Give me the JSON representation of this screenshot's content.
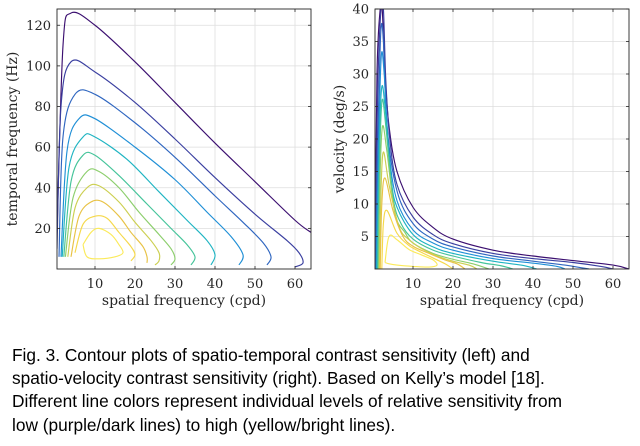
{
  "chart_data": [
    {
      "type": "contour",
      "xlabel": "spatial frequency (cpd)",
      "ylabel": "temporal frequency (Hz)",
      "xlim": [
        0.5,
        64
      ],
      "ylim": [
        0,
        128
      ],
      "xticks": [
        10,
        20,
        30,
        40,
        50,
        60
      ],
      "yticks": [
        20,
        40,
        60,
        80,
        100,
        120
      ],
      "grid": true,
      "colormap": [
        "#3b0f70",
        "#3a3fa0",
        "#2f66c0",
        "#1f8fd6",
        "#1fb4c2",
        "#45c49a",
        "#8cce6c",
        "#cccf50",
        "#e8c245",
        "#f5d84a",
        "#fbea5a"
      ],
      "contours": [
        {
          "level": 1,
          "x": [
            0.5,
            2,
            4,
            10,
            20,
            30,
            40,
            50,
            60,
            64
          ],
          "y": [
            18,
            110,
            126,
            120,
            102,
            82,
            62,
            43,
            24,
            18
          ]
        },
        {
          "level": 2,
          "x": [
            0.5,
            1.5,
            4,
            10,
            20,
            30,
            40,
            50,
            58,
            61,
            62,
            60
          ],
          "y": [
            10,
            80,
            102,
            97,
            82,
            64,
            45,
            27,
            14,
            8,
            3,
            1
          ]
        },
        {
          "level": 3,
          "x": [
            1,
            2,
            5,
            10,
            20,
            30,
            40,
            47,
            52,
            54,
            53
          ],
          "y": [
            6,
            65,
            86,
            86,
            72,
            55,
            36,
            23,
            13,
            6,
            2
          ]
        },
        {
          "level": 4,
          "x": [
            1.5,
            3,
            6,
            10,
            20,
            30,
            38,
            44,
            47,
            46
          ],
          "y": [
            6,
            58,
            74,
            74,
            60,
            44,
            28,
            16,
            7,
            2
          ]
        },
        {
          "level": 5,
          "x": [
            1.8,
            3.5,
            7,
            10,
            18,
            26,
            33,
            38,
            40,
            39
          ],
          "y": [
            6,
            50,
            65,
            65,
            54,
            38,
            24,
            14,
            7,
            2
          ]
        },
        {
          "level": 6,
          "x": [
            2.2,
            4,
            7,
            10,
            16,
            23,
            29,
            33,
            35,
            34
          ],
          "y": [
            6,
            43,
            56,
            56,
            46,
            32,
            20,
            12,
            6,
            2
          ]
        },
        {
          "level": 7,
          "x": [
            2.6,
            4.5,
            8,
            11,
            16,
            21,
            26,
            29,
            30,
            29
          ],
          "y": [
            6,
            35,
            48,
            48,
            40,
            28,
            17,
            10,
            5,
            2
          ]
        },
        {
          "level": 8,
          "x": [
            3.2,
            5,
            8,
            11,
            16,
            20,
            24,
            26,
            26,
            25
          ],
          "y": [
            6,
            30,
            40,
            41,
            33,
            23,
            14,
            8,
            4,
            2
          ]
        },
        {
          "level": 9,
          "x": [
            4,
            6,
            9,
            12,
            16,
            19,
            22,
            23,
            23
          ],
          "y": [
            6,
            26,
            33,
            33,
            26,
            18,
            11,
            6,
            3
          ]
        },
        {
          "level": 10,
          "x": [
            5,
            7,
            10,
            13,
            16,
            19,
            20,
            19
          ],
          "y": [
            8,
            22,
            26,
            25,
            18,
            11,
            7,
            4
          ]
        },
        {
          "level": 11,
          "x": [
            7,
            9,
            11,
            14,
            16,
            17,
            15,
            11,
            8,
            7
          ],
          "y": [
            12,
            18,
            20,
            17,
            12,
            8,
            6,
            5,
            6,
            12
          ]
        }
      ]
    },
    {
      "type": "contour",
      "xlabel": "spatial frequency (cpd)",
      "ylabel": "velocity (deg/s)",
      "xlim": [
        0.5,
        64
      ],
      "ylim": [
        0,
        40
      ],
      "xticks": [
        10,
        20,
        30,
        40,
        50,
        60
      ],
      "yticks": [
        5,
        10,
        15,
        20,
        25,
        30,
        35,
        40
      ],
      "grid": true,
      "colormap": [
        "#3b0f70",
        "#3a3fa0",
        "#2f66c0",
        "#1f8fd6",
        "#1fb4c2",
        "#45c49a",
        "#8cce6c",
        "#cccf50",
        "#e8c245",
        "#f5d84a",
        "#fbea5a"
      ],
      "contours": [
        {
          "level": 1,
          "x": [
            0.5,
            1,
            1.8,
            2.3,
            3,
            4,
            6,
            10,
            15,
            20,
            30,
            40,
            50,
            60,
            64
          ],
          "y": [
            0,
            30,
            40,
            40,
            30,
            22,
            15,
            9.5,
            6.4,
            4.6,
            2.9,
            2,
            1.3,
            0.6,
            0
          ]
        },
        {
          "level": 2,
          "x": [
            0.5,
            1.2,
            2,
            2.6,
            3.2,
            4.2,
            6,
            10,
            15,
            20,
            30,
            40,
            50,
            57,
            60
          ],
          "y": [
            0,
            28,
            40,
            40,
            29,
            20,
            13,
            8,
            5.3,
            3.9,
            2.4,
            1.6,
            1,
            0.4,
            0
          ]
        },
        {
          "level": 3,
          "x": [
            0.6,
            1.4,
            2,
            2.6,
            3.5,
            6,
            10,
            15,
            20,
            30,
            40,
            48,
            52,
            54
          ],
          "y": [
            0,
            25,
            37,
            35,
            22,
            12,
            7,
            4.6,
            3.4,
            2,
            1.2,
            0.6,
            0.2,
            0
          ]
        },
        {
          "level": 4,
          "x": [
            0.8,
            1.5,
            2.1,
            2.8,
            4,
            6,
            10,
            15,
            20,
            30,
            40,
            46,
            48
          ],
          "y": [
            0,
            22,
            33,
            30,
            18,
            10.5,
            6,
            4,
            2.9,
            1.6,
            0.9,
            0.4,
            0
          ]
        },
        {
          "level": 5,
          "x": [
            1,
            1.6,
            2.2,
            3,
            4.5,
            6,
            10,
            15,
            20,
            30,
            37,
            41
          ],
          "y": [
            0,
            20,
            28,
            25,
            14,
            9.5,
            5.3,
            3.4,
            2.4,
            1.2,
            0.6,
            0
          ]
        },
        {
          "level": 6,
          "x": [
            1.2,
            1.7,
            2.3,
            3.2,
            5,
            7,
            10,
            15,
            20,
            27,
            32,
            35
          ],
          "y": [
            0,
            18,
            26,
            22,
            11,
            7,
            4.6,
            2.9,
            2,
            1,
            0.5,
            0
          ]
        },
        {
          "level": 7,
          "x": [
            1.4,
            1.8,
            2.4,
            3.5,
            5.5,
            8,
            10,
            15,
            20,
            25,
            29
          ],
          "y": [
            0,
            15,
            22,
            18,
            8.5,
            5.6,
            4,
            2.4,
            1.5,
            0.8,
            0
          ]
        },
        {
          "level": 8,
          "x": [
            1.6,
            2,
            2.6,
            4,
            6.5,
            9,
            12,
            16,
            20,
            24,
            26
          ],
          "y": [
            0,
            12,
            18,
            13,
            6.5,
            4.5,
            3.2,
            2,
            1.2,
            0.6,
            0
          ]
        },
        {
          "level": 9,
          "x": [
            1.8,
            2.2,
            3,
            5,
            7.5,
            10,
            14,
            18,
            21,
            23
          ],
          "y": [
            0,
            10,
            14,
            9,
            5,
            3.5,
            2.4,
            1.4,
            0.8,
            0
          ]
        },
        {
          "level": 10,
          "x": [
            2.2,
            2.6,
            3.5,
            6,
            9,
            12,
            15,
            18,
            20
          ],
          "y": [
            0,
            7,
            9,
            5.5,
            3.6,
            2.6,
            1.7,
            0.8,
            0
          ]
        },
        {
          "level": 11,
          "x": [
            3,
            4,
            6,
            9,
            12,
            15,
            16,
            14,
            10,
            6,
            4,
            3
          ],
          "y": [
            1,
            5,
            4.5,
            3,
            2.2,
            1.4,
            0.6,
            0.3,
            0.4,
            0.6,
            0.8,
            1
          ]
        }
      ]
    }
  ],
  "caption": {
    "lines": [
      "Fig. 3.  Contour plots of spatio-temporal contrast sensitivity (left) and",
      "spatio-velocity contrast sensitivity (right). Based on Kelly’s model [18].",
      "Different line colors represent individual levels of relative sensitivity from",
      "low (purple/dark lines) to high (yellow/bright lines)."
    ]
  }
}
